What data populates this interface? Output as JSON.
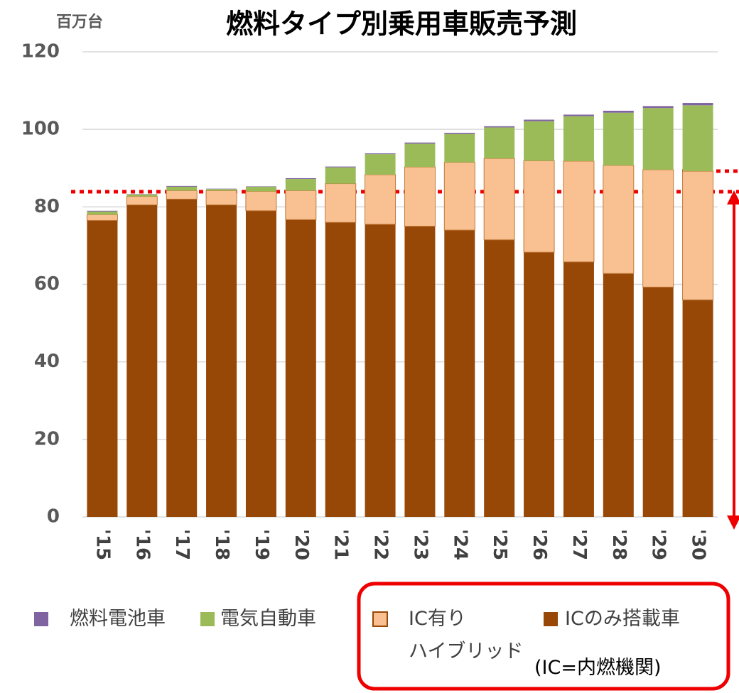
{
  "chart_data": {
    "type": "stacked_bar",
    "title": "燃料タイプ別乗用車販売予測",
    "y_label": "百万台",
    "categories": [
      "'15",
      "'16",
      "'17",
      "'18",
      "'19",
      "'20",
      "'21",
      "'22",
      "'23",
      "'24",
      "'25",
      "'26",
      "'27",
      "'28",
      "'29",
      "'30"
    ],
    "series": [
      {
        "name": "ICのみ搭載車",
        "color": "#974706",
        "values": [
          76.5,
          80.5,
          82,
          80.5,
          79,
          76.7,
          76,
          75.5,
          75,
          74,
          71.5,
          68.3,
          65.8,
          62.8,
          59.3,
          56
        ]
      },
      {
        "name": "IC有り\nハイブリッド",
        "color": "#f9c191",
        "values": [
          1.5,
          2.2,
          2.2,
          3.7,
          5,
          7.5,
          10,
          12.8,
          15.3,
          17.5,
          21,
          23.6,
          26,
          27.9,
          30.3,
          33.2
        ]
      },
      {
        "name": "電気自動車",
        "color": "#9bbb59",
        "values": [
          0.8,
          0.5,
          1.0,
          0.4,
          1.2,
          3,
          4.2,
          5.3,
          6,
          7.3,
          8,
          10.2,
          11.6,
          13.6,
          15.9,
          17
        ]
      },
      {
        "name": "燃料電池車",
        "color": "#8064a2",
        "values": [
          0.2,
          0.1,
          0.2,
          0.1,
          0.1,
          0.2,
          0.2,
          0.2,
          0.3,
          0.3,
          0.3,
          0.4,
          0.4,
          0.5,
          0.5,
          0.6
        ]
      }
    ],
    "ylim": [
      0,
      120
    ],
    "yticks": [
      0,
      20,
      40,
      60,
      80,
      100,
      120
    ],
    "grid": true,
    "annotation": "(IC=内燃機関)"
  }
}
